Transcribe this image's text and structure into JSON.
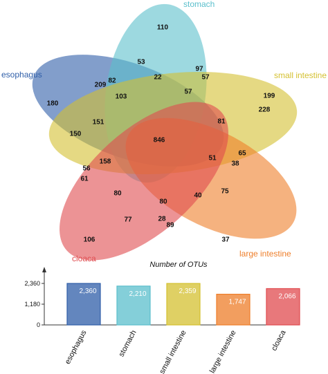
{
  "chart_data": [
    {
      "type": "venn",
      "sets": [
        {
          "name": "esophagus",
          "color": "#2f5ea8"
        },
        {
          "name": "stomach",
          "color": "#5bbfcc"
        },
        {
          "name": "small intestine",
          "color": "#d4c030"
        },
        {
          "name": "large intestine",
          "color": "#ee7e2a"
        },
        {
          "name": "cloaca",
          "color": "#e04b4f"
        }
      ],
      "region_values": [
        "110",
        "53",
        "97",
        "57",
        "82",
        "209",
        "22",
        "103",
        "57",
        "199",
        "180",
        "228",
        "151",
        "81",
        "150",
        "846",
        "65",
        "51",
        "38",
        "158",
        "56",
        "61",
        "80",
        "75",
        "40",
        "80",
        "77",
        "28",
        "89",
        "106",
        "37"
      ]
    },
    {
      "type": "bar",
      "title": "Number of  OTUs",
      "categories": [
        "esophagus",
        "stomach",
        "small intestine",
        "large intestine",
        "cloaca"
      ],
      "values": [
        2360,
        2210,
        2359,
        1747,
        2066
      ],
      "value_labels": [
        "2,360",
        "2,210",
        "2,359",
        "1,747",
        "2,066"
      ],
      "colors": [
        "#2f5ea8",
        "#5bbfcc",
        "#d4c030",
        "#ee7e2a",
        "#e04b4f"
      ],
      "yticks": [
        0,
        1180,
        2360
      ],
      "ytick_labels": [
        "0",
        "1,180",
        "2,360"
      ],
      "ylim": [
        0,
        2360
      ]
    }
  ]
}
